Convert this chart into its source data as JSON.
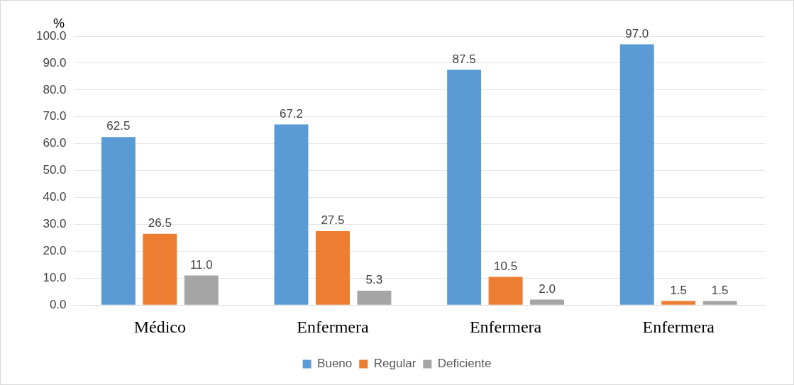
{
  "chart_data": {
    "type": "bar",
    "ylabel": "%",
    "categories": [
      "Médico",
      "Enfermera",
      "Enfermera",
      "Enfermera"
    ],
    "series": [
      {
        "name": "Bueno",
        "color": "#5b9bd5",
        "values": [
          62.5,
          67.2,
          87.5,
          97.0
        ],
        "value_labels": [
          "62.5",
          "67.2",
          "87.5",
          "97.0"
        ]
      },
      {
        "name": "Regular",
        "color": "#ed7d31",
        "values": [
          26.5,
          27.5,
          10.5,
          1.5
        ],
        "value_labels": [
          "26.5",
          "27.5",
          "10.5",
          "1.5"
        ]
      },
      {
        "name": "Deficiente",
        "color": "#a5a5a5",
        "values": [
          11.0,
          5.3,
          2.0,
          1.5
        ],
        "value_labels": [
          "11.0",
          "5.3",
          "2.0",
          "1.5"
        ]
      }
    ],
    "ylim": [
      0,
      100
    ],
    "yticks": [
      {
        "value": 0,
        "label": "0.0"
      },
      {
        "value": 10,
        "label": "10.0"
      },
      {
        "value": 20,
        "label": "20.0"
      },
      {
        "value": 30,
        "label": "30.0"
      },
      {
        "value": 40,
        "label": "40.0"
      },
      {
        "value": 50,
        "label": "50.0"
      },
      {
        "value": 60,
        "label": "60.0"
      },
      {
        "value": 70,
        "label": "70.0"
      },
      {
        "value": 80,
        "label": "80.0"
      },
      {
        "value": 90,
        "label": "90.0"
      },
      {
        "value": 100,
        "label": "100.0"
      }
    ],
    "grid": "y",
    "legend": "bottom"
  }
}
